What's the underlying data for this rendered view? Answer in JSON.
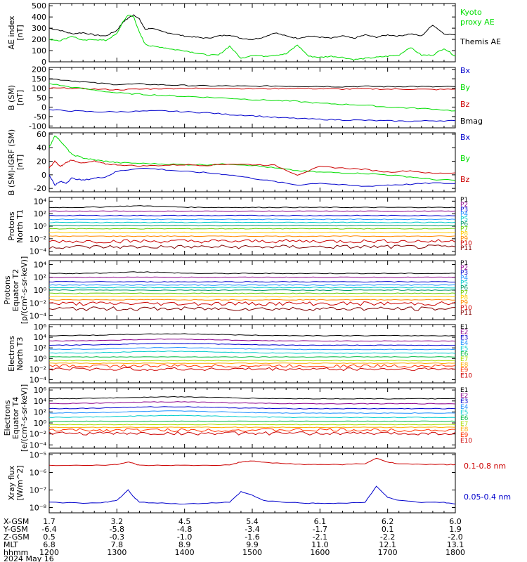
{
  "chart_data": [
    {
      "type": "line",
      "panel": "ae",
      "ylabel": "AE index [nT]",
      "yticks": [
        "500",
        "400",
        "300",
        "200",
        "100",
        "0"
      ],
      "ylim": [
        0,
        520
      ],
      "legend": [
        {
          "name": "Kyoto proxy AE",
          "color": "#00dd00"
        },
        {
          "name": "Themis AE",
          "color": "#000000"
        }
      ],
      "series": [
        {
          "name": "Themis AE",
          "color": "#000000",
          "x": [
            1200,
            1210,
            1220,
            1230,
            1240,
            1250,
            1300,
            1305,
            1310,
            1315,
            1320,
            1325,
            1330,
            1340,
            1350,
            1400,
            1410,
            1420,
            1430,
            1440,
            1450,
            1500,
            1510,
            1520,
            1530,
            1540,
            1550,
            1600,
            1610,
            1620,
            1630,
            1640,
            1650,
            1700,
            1710,
            1720,
            1730,
            1740,
            1750,
            1800
          ],
          "y": [
            300,
            280,
            250,
            260,
            240,
            230,
            280,
            350,
            390,
            420,
            380,
            290,
            300,
            270,
            250,
            230,
            220,
            210,
            230,
            240,
            210,
            200,
            220,
            260,
            230,
            210,
            230,
            220,
            210,
            230,
            210,
            240,
            220,
            240,
            230,
            250,
            230,
            330,
            250,
            240
          ]
        },
        {
          "name": "Kyoto proxy AE",
          "color": "#00dd00",
          "x": [
            1200,
            1210,
            1220,
            1230,
            1240,
            1250,
            1300,
            1305,
            1310,
            1315,
            1320,
            1325,
            1330,
            1340,
            1350,
            1400,
            1410,
            1420,
            1430,
            1440,
            1450,
            1500,
            1510,
            1520,
            1530,
            1540,
            1550,
            1600,
            1610,
            1620,
            1630,
            1640,
            1650,
            1700,
            1710,
            1720,
            1730,
            1740,
            1750,
            1800
          ],
          "y": [
            200,
            190,
            230,
            190,
            200,
            190,
            250,
            350,
            420,
            400,
            260,
            160,
            140,
            130,
            110,
            100,
            80,
            60,
            60,
            140,
            30,
            60,
            50,
            60,
            70,
            150,
            50,
            40,
            50,
            40,
            20,
            30,
            40,
            50,
            60,
            130,
            60,
            60,
            120,
            50
          ]
        }
      ]
    },
    {
      "type": "line",
      "panel": "bsm",
      "ylabel": "B (SM) [nT]",
      "yticks": [
        "200",
        "150",
        "100",
        "50",
        "0",
        "-50",
        "-100"
      ],
      "ylim": [
        -110,
        210
      ],
      "legend": [
        {
          "name": "Bx",
          "color": "#0000cc"
        },
        {
          "name": "By",
          "color": "#00dd00"
        },
        {
          "name": "Bz",
          "color": "#cc0000"
        },
        {
          "name": "Bmag",
          "color": "#000000"
        }
      ],
      "series": [
        {
          "name": "Bmag",
          "color": "#000000",
          "x": [
            1200,
            1220,
            1240,
            1300,
            1320,
            1340,
            1400,
            1420,
            1440,
            1500,
            1520,
            1540,
            1600,
            1620,
            1640,
            1700,
            1720,
            1740,
            1800
          ],
          "y": [
            150,
            140,
            128,
            120,
            122,
            118,
            115,
            112,
            112,
            110,
            112,
            110,
            110,
            108,
            110,
            108,
            110,
            107,
            108
          ]
        },
        {
          "name": "Bz",
          "color": "#cc0000",
          "x": [
            1200,
            1220,
            1240,
            1300,
            1320,
            1340,
            1400,
            1420,
            1440,
            1500,
            1520,
            1540,
            1600,
            1620,
            1640,
            1700,
            1720,
            1740,
            1800
          ],
          "y": [
            100,
            100,
            95,
            92,
            95,
            98,
            100,
            98,
            100,
            97,
            98,
            100,
            97,
            95,
            97,
            95,
            95,
            93,
            95
          ]
        },
        {
          "name": "By",
          "color": "#00dd00",
          "x": [
            1200,
            1220,
            1240,
            1300,
            1320,
            1340,
            1400,
            1420,
            1440,
            1500,
            1520,
            1540,
            1600,
            1620,
            1640,
            1700,
            1720,
            1740,
            1800
          ],
          "y": [
            125,
            105,
            90,
            75,
            68,
            62,
            57,
            52,
            47,
            40,
            35,
            30,
            20,
            15,
            10,
            0,
            -5,
            -10,
            -20
          ]
        },
        {
          "name": "Bx",
          "color": "#0000cc",
          "x": [
            1200,
            1220,
            1240,
            1300,
            1320,
            1340,
            1400,
            1420,
            1440,
            1500,
            1520,
            1540,
            1600,
            1620,
            1640,
            1700,
            1720,
            1740,
            1800
          ],
          "y": [
            -15,
            -20,
            -25,
            -25,
            -22,
            -20,
            -25,
            -30,
            -40,
            -45,
            -55,
            -60,
            -65,
            -68,
            -70,
            -73,
            -75,
            -72,
            -72
          ]
        }
      ]
    },
    {
      "type": "line",
      "panel": "bigrf",
      "ylabel": "B (SM)-IGRF (SM) [nT]",
      "yticks": [
        "60",
        "40",
        "20",
        "0",
        "-20"
      ],
      "ylim": [
        -25,
        62
      ],
      "legend": [
        {
          "name": "Bx",
          "color": "#0000cc"
        },
        {
          "name": "By",
          "color": "#00dd00"
        },
        {
          "name": "Bz",
          "color": "#cc0000"
        }
      ],
      "series": [
        {
          "name": "By",
          "color": "#00dd00",
          "x": [
            1200,
            1205,
            1210,
            1215,
            1220,
            1230,
            1240,
            1250,
            1300,
            1320,
            1340,
            1400,
            1420,
            1440,
            1500,
            1520,
            1540,
            1600,
            1620,
            1640,
            1700,
            1720,
            1740,
            1800
          ],
          "y": [
            40,
            58,
            50,
            40,
            30,
            25,
            22,
            20,
            18,
            17,
            16,
            15,
            15,
            16,
            14,
            10,
            6,
            4,
            3,
            2,
            0,
            -3,
            -7,
            -8
          ]
        },
        {
          "name": "Bz",
          "color": "#cc0000",
          "x": [
            1200,
            1205,
            1210,
            1215,
            1220,
            1230,
            1240,
            1250,
            1300,
            1320,
            1340,
            1400,
            1420,
            1440,
            1500,
            1520,
            1540,
            1600,
            1620,
            1640,
            1700,
            1720,
            1740,
            1800
          ],
          "y": [
            10,
            20,
            12,
            18,
            22,
            17,
            20,
            16,
            15,
            13,
            14,
            15,
            14,
            16,
            15,
            14,
            0,
            12,
            10,
            8,
            4,
            6,
            2,
            3
          ]
        },
        {
          "name": "Bx",
          "color": "#0000cc",
          "x": [
            1200,
            1205,
            1210,
            1215,
            1220,
            1230,
            1240,
            1250,
            1300,
            1320,
            1340,
            1400,
            1420,
            1440,
            1500,
            1520,
            1540,
            1600,
            1620,
            1640,
            1700,
            1720,
            1740,
            1800
          ],
          "y": [
            0,
            -15,
            -10,
            -12,
            -5,
            -8,
            -5,
            -3,
            5,
            10,
            8,
            5,
            3,
            0,
            -5,
            -10,
            -15,
            -12,
            -15,
            -17,
            -15,
            -14,
            -12,
            -13
          ]
        }
      ]
    },
    {
      "type": "line",
      "panel": "protons-t1",
      "log": true,
      "ylabel": "Protons North T1",
      "yticks": [
        "10⁴",
        "10²",
        "10⁰",
        "10⁻²",
        "10⁻⁴"
      ],
      "ylim_exp": [
        -4.6,
        4.6
      ],
      "legend": [
        {
          "name": "P1",
          "color": "#000000"
        },
        {
          "name": "P2",
          "color": "#8b008b"
        },
        {
          "name": "P3",
          "color": "#0000cc"
        },
        {
          "name": "P4",
          "color": "#1e90ff"
        },
        {
          "name": "P5",
          "color": "#00cccc"
        },
        {
          "name": "P6",
          "color": "#009966"
        },
        {
          "name": "P7",
          "color": "#66cc00"
        },
        {
          "name": "P8",
          "color": "#ffcc00"
        },
        {
          "name": "P9",
          "color": "#ff8800"
        },
        {
          "name": "P10",
          "color": "#cc0000"
        },
        {
          "name": "P11",
          "color": "#800000"
        }
      ],
      "series_exp": [
        3.0,
        2.4,
        1.7,
        1.1,
        0.6,
        0.1,
        -0.4,
        -1.0,
        -1.6,
        -2.4,
        -3.3
      ]
    },
    {
      "type": "line",
      "panel": "protons-t2",
      "log": true,
      "ylabel": "Protons Equator T2 [p/(cm²-s-sr-keV)]",
      "yticks": [
        "10⁴",
        "10²",
        "10⁰",
        "10⁻²",
        "10⁻⁴"
      ],
      "ylim_exp": [
        -4.6,
        4.6
      ],
      "legend": [
        {
          "name": "P1",
          "color": "#000000"
        },
        {
          "name": "P2",
          "color": "#8b008b"
        },
        {
          "name": "P3",
          "color": "#0000cc"
        },
        {
          "name": "P4",
          "color": "#1e90ff"
        },
        {
          "name": "P5",
          "color": "#00cccc"
        },
        {
          "name": "P6",
          "color": "#009966"
        },
        {
          "name": "P7",
          "color": "#66cc00"
        },
        {
          "name": "P8",
          "color": "#ffcc00"
        },
        {
          "name": "P9",
          "color": "#ff8800"
        },
        {
          "name": "P10",
          "color": "#cc0000"
        },
        {
          "name": "P11",
          "color": "#800000"
        }
      ],
      "series_exp": [
        2.6,
        2.0,
        1.3,
        0.8,
        0.4,
        0.0,
        -0.5,
        -1.0,
        -1.5,
        -2.1,
        -2.9
      ]
    },
    {
      "type": "line",
      "panel": "electrons-t3",
      "log": true,
      "ylabel": "Electrons North T3",
      "yticks": [
        "10⁶",
        "10⁴",
        "10²",
        "10⁰",
        "10⁻²",
        "10⁻⁴"
      ],
      "ylim_exp": [
        -4.6,
        6.4
      ],
      "legend": [
        {
          "name": "E1",
          "color": "#000000"
        },
        {
          "name": "E2",
          "color": "#8b008b"
        },
        {
          "name": "E3",
          "color": "#0000cc"
        },
        {
          "name": "E4",
          "color": "#1e90ff"
        },
        {
          "name": "E5",
          "color": "#00cccc"
        },
        {
          "name": "E6",
          "color": "#00bb44"
        },
        {
          "name": "E7",
          "color": "#aadd00"
        },
        {
          "name": "E8",
          "color": "#ffaa00"
        },
        {
          "name": "E9",
          "color": "#ff3300"
        },
        {
          "name": "E10",
          "color": "#cc0000"
        }
      ],
      "series_exp": [
        4.3,
        3.3,
        2.5,
        1.7,
        1.0,
        0.3,
        -0.4,
        -0.9,
        -1.4,
        -2.0
      ]
    },
    {
      "type": "line",
      "panel": "electrons-t4",
      "log": true,
      "ylabel": "Electrons Equator T4 [e/(cm²-s-sr-keV)]",
      "yticks": [
        "10⁶",
        "10⁴",
        "10²",
        "10⁰",
        "10⁻²",
        "10⁻⁴"
      ],
      "ylim_exp": [
        -4.6,
        6.4
      ],
      "legend": [
        {
          "name": "E1",
          "color": "#000000"
        },
        {
          "name": "E2",
          "color": "#8b008b"
        },
        {
          "name": "E3",
          "color": "#0000cc"
        },
        {
          "name": "E4",
          "color": "#1e90ff"
        },
        {
          "name": "E5",
          "color": "#00cccc"
        },
        {
          "name": "E6",
          "color": "#00bb44"
        },
        {
          "name": "E7",
          "color": "#aadd00"
        },
        {
          "name": "E8",
          "color": "#ffaa00"
        },
        {
          "name": "E9",
          "color": "#ff3300"
        },
        {
          "name": "E10",
          "color": "#cc0000"
        }
      ],
      "series_exp": [
        4.4,
        3.5,
        2.6,
        1.8,
        1.0,
        0.3,
        -0.3,
        -0.8,
        -1.3,
        -1.9
      ]
    },
    {
      "type": "line",
      "panel": "xray",
      "log": true,
      "ylabel": "Xray flux [W/m^2]",
      "yticks": [
        "10⁻⁵",
        "10⁻⁶",
        "10⁻⁷",
        "10⁻⁸"
      ],
      "ylim_exp": [
        -8.3,
        -4.9
      ],
      "legend": [
        {
          "name": "0.1-0.8 nm",
          "color": "#cc0000"
        },
        {
          "name": "0.05-0.4 nm",
          "color": "#0000cc"
        }
      ],
      "series": [
        {
          "name": "0.1-0.8 nm",
          "color": "#cc0000",
          "x": [
            1200,
            1230,
            1250,
            1300,
            1310,
            1315,
            1320,
            1340,
            1400,
            1420,
            1440,
            1450,
            1500,
            1510,
            1530,
            1550,
            1600,
            1620,
            1640,
            1650,
            1700,
            1710,
            1730,
            1750,
            1800
          ],
          "y": [
            -5.6,
            -5.6,
            -5.58,
            -5.55,
            -5.4,
            -5.5,
            -5.6,
            -5.6,
            -5.6,
            -5.6,
            -5.58,
            -5.4,
            -5.35,
            -5.42,
            -5.5,
            -5.55,
            -5.55,
            -5.55,
            -5.5,
            -5.2,
            -5.4,
            -5.5,
            -5.55,
            -5.55,
            -5.55
          ]
        },
        {
          "name": "0.05-0.4 nm",
          "color": "#0000cc",
          "x": [
            1200,
            1230,
            1250,
            1300,
            1310,
            1315,
            1320,
            1340,
            1400,
            1420,
            1440,
            1450,
            1500,
            1510,
            1530,
            1550,
            1600,
            1620,
            1640,
            1650,
            1700,
            1710,
            1730,
            1750,
            1800
          ],
          "y": [
            -7.7,
            -7.75,
            -7.7,
            -7.6,
            -7.0,
            -7.4,
            -7.7,
            -7.75,
            -7.8,
            -7.75,
            -7.7,
            -7.1,
            -7.3,
            -7.6,
            -7.7,
            -7.75,
            -7.75,
            -7.75,
            -7.7,
            -6.8,
            -7.4,
            -7.6,
            -7.7,
            -7.7,
            -7.8
          ]
        }
      ]
    }
  ],
  "xaxis": {
    "columns": [
      {
        "x": 1200,
        "xgsm": "1.7",
        "ygsm": "-6.4",
        "zgsm": "0.5",
        "mlt": "6.8",
        "hhmm": "1200"
      },
      {
        "x": 1300,
        "xgsm": "3.2",
        "ygsm": "-5.8",
        "zgsm": "-0.3",
        "mlt": "7.8",
        "hhmm": "1300"
      },
      {
        "x": 1400,
        "xgsm": "4.5",
        "ygsm": "-4.8",
        "zgsm": "-1.0",
        "mlt": "8.9",
        "hhmm": "1400"
      },
      {
        "x": 1500,
        "xgsm": "5.4",
        "ygsm": "-3.4",
        "zgsm": "-1.6",
        "mlt": "9.9",
        "hhmm": "1500"
      },
      {
        "x": 1600,
        "xgsm": "6.1",
        "ygsm": "-1.7",
        "zgsm": "-2.1",
        "mlt": "11.0",
        "hhmm": "1600"
      },
      {
        "x": 1700,
        "xgsm": "6.2",
        "ygsm": "0.1",
        "zgsm": "-2.2",
        "mlt": "12.1",
        "hhmm": "1700"
      },
      {
        "x": 1800,
        "xgsm": "6.0",
        "ygsm": "1.9",
        "zgsm": "-2.0",
        "mlt": "13.1",
        "hhmm": "1800"
      }
    ],
    "row_labels": [
      "X-GSM",
      "Y-GSM",
      "Z-GSM",
      "MLT",
      "hhmm"
    ],
    "date": "2024 May 16"
  }
}
